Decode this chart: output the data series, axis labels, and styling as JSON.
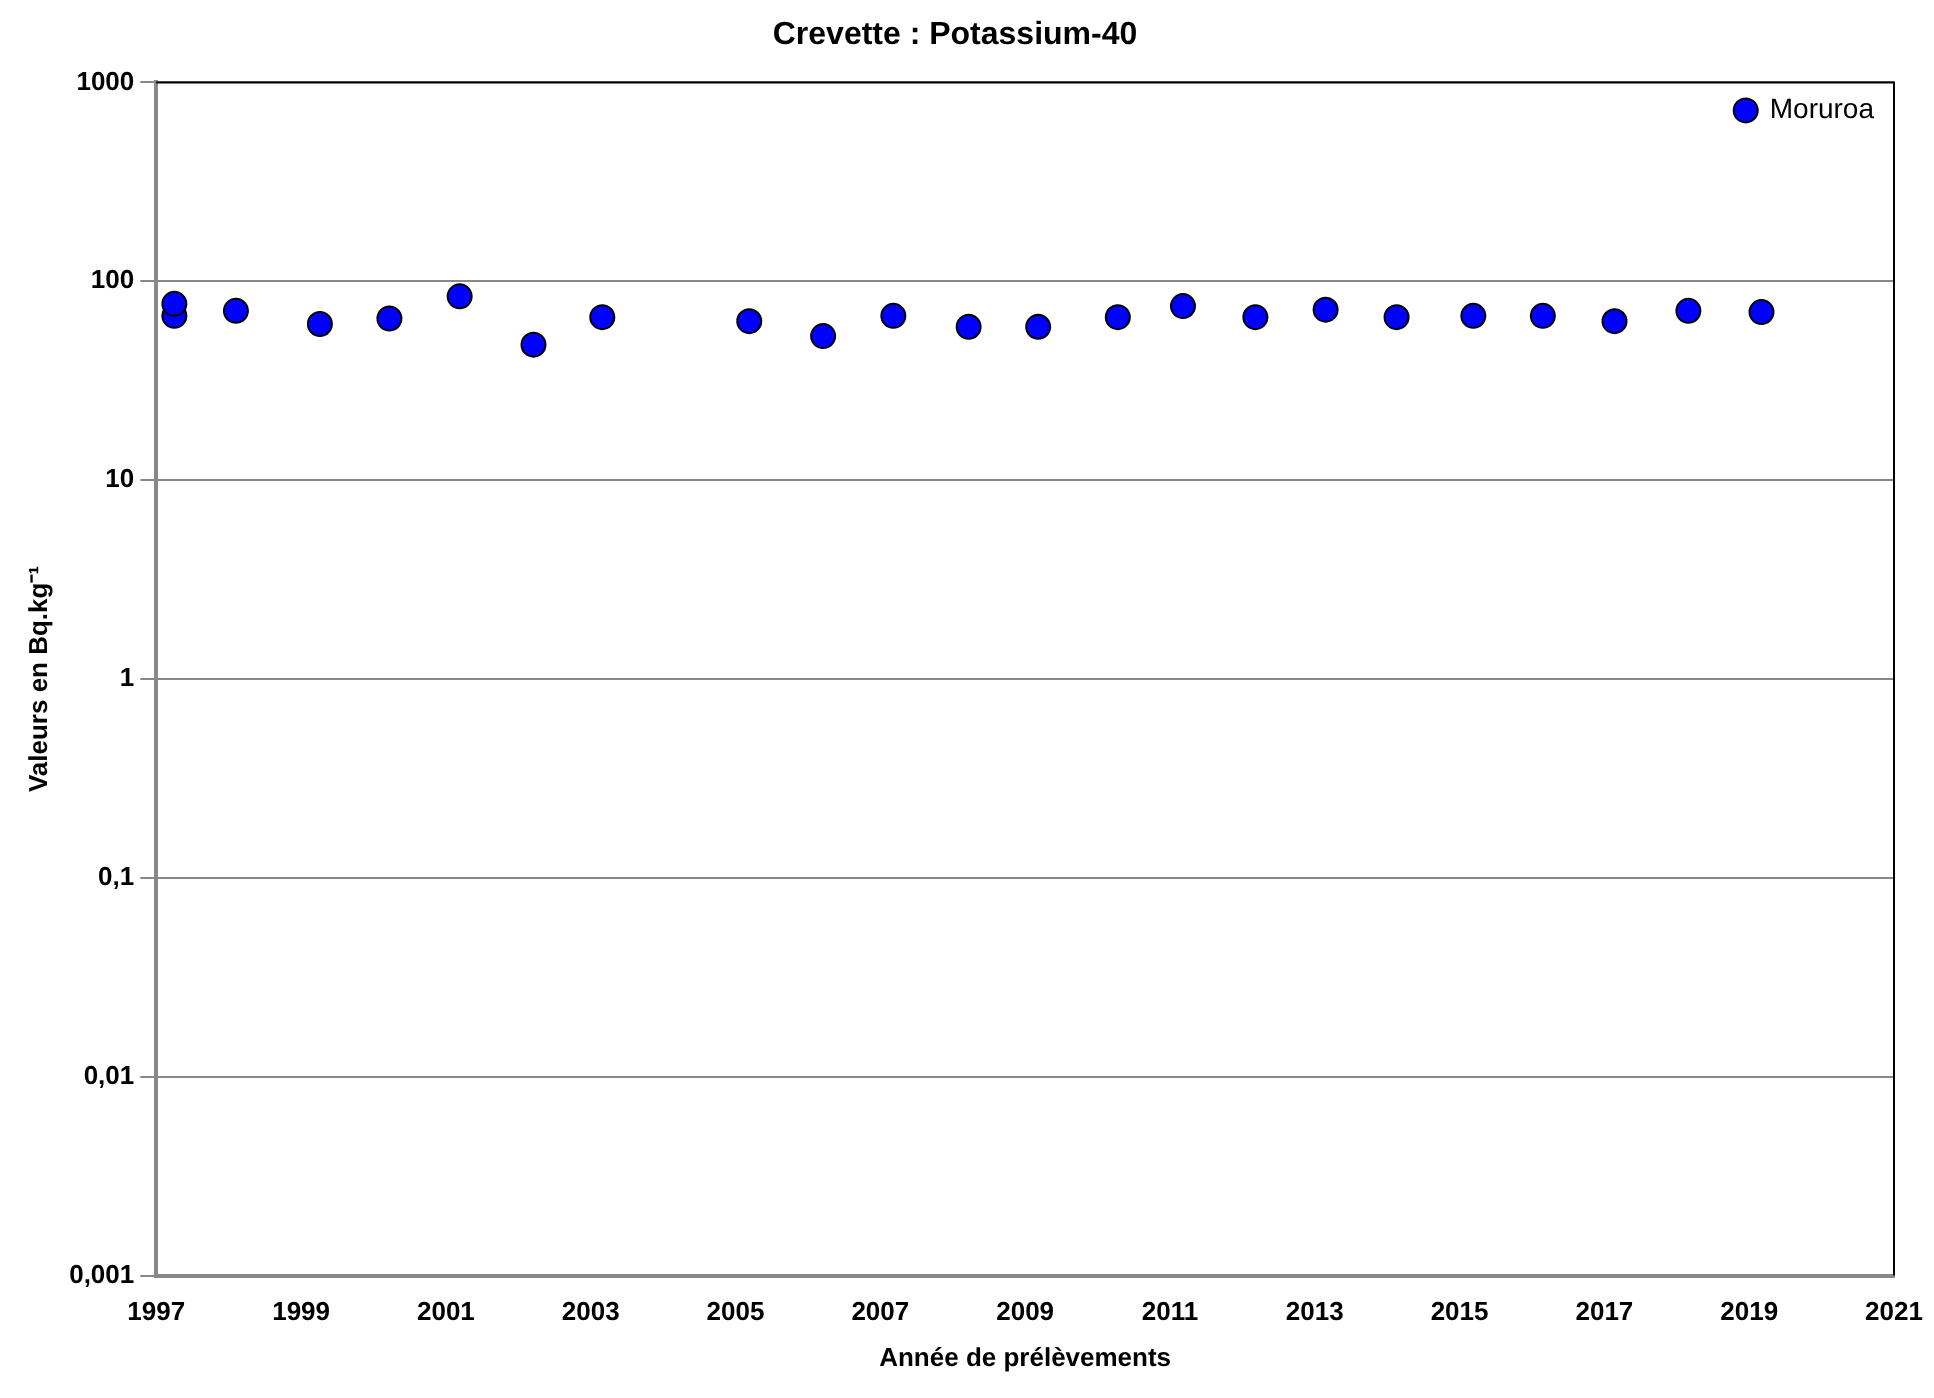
{
  "chart_data": {
    "type": "scatter",
    "title": "Crevette : Potassium-40",
    "xlabel": "Année de prélèvements",
    "ylabel": "Valeurs en Bq.kg⁻¹",
    "series": [
      {
        "name": "Moruroa",
        "color": "#0000ff",
        "x": [
          1997.25,
          1997.25,
          1998.1,
          1999.26,
          2000.22,
          2001.19,
          2002.21,
          2003.16,
          2005.19,
          2006.21,
          2007.18,
          2008.22,
          2009.18,
          2010.28,
          2011.18,
          2012.18,
          2013.15,
          2014.13,
          2015.19,
          2016.15,
          2017.14,
          2018.16,
          2019.17
        ],
        "values": [
          67,
          77,
          71,
          61,
          65,
          84,
          48,
          66,
          63,
          53,
          67,
          59,
          59,
          66,
          75,
          66,
          72,
          66,
          67,
          67,
          63,
          71,
          70
        ]
      }
    ],
    "xlim": [
      1997,
      2021
    ],
    "xticks": [
      1997,
      1999,
      2001,
      2003,
      2005,
      2007,
      2009,
      2011,
      2013,
      2015,
      2017,
      2019,
      2021
    ],
    "ylim": [
      0.001,
      1000
    ],
    "yticks": [
      {
        "value": 0.001,
        "label": "0,001"
      },
      {
        "value": 0.01,
        "label": "0,01"
      },
      {
        "value": 0.1,
        "label": "0,1"
      },
      {
        "value": 1,
        "label": "1"
      },
      {
        "value": 10,
        "label": "10"
      },
      {
        "value": 100,
        "label": "100"
      },
      {
        "value": 1000,
        "label": "1000"
      }
    ],
    "log": "y",
    "grid": "y",
    "legend": "top right",
    "marker": "circle"
  }
}
